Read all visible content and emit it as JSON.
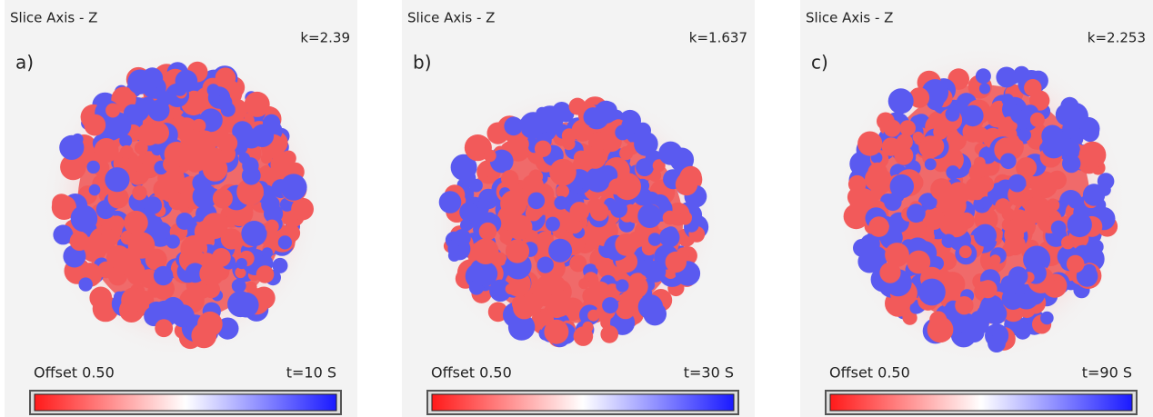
{
  "panels": [
    {
      "title": "Slice Axis - Z",
      "k": "k=2.39",
      "label": "a)",
      "offset": "Offset 0.50",
      "time": "t=10 S"
    },
    {
      "title": "Slice Axis - Z",
      "k": "k=1.637",
      "label": "b)",
      "offset": "Offset 0.50",
      "time": "t=30 S"
    },
    {
      "title": "Slice Axis - Z",
      "k": "k=2.253",
      "label": "c)",
      "offset": "Offset 0.50",
      "time": "t=90 S"
    }
  ]
}
